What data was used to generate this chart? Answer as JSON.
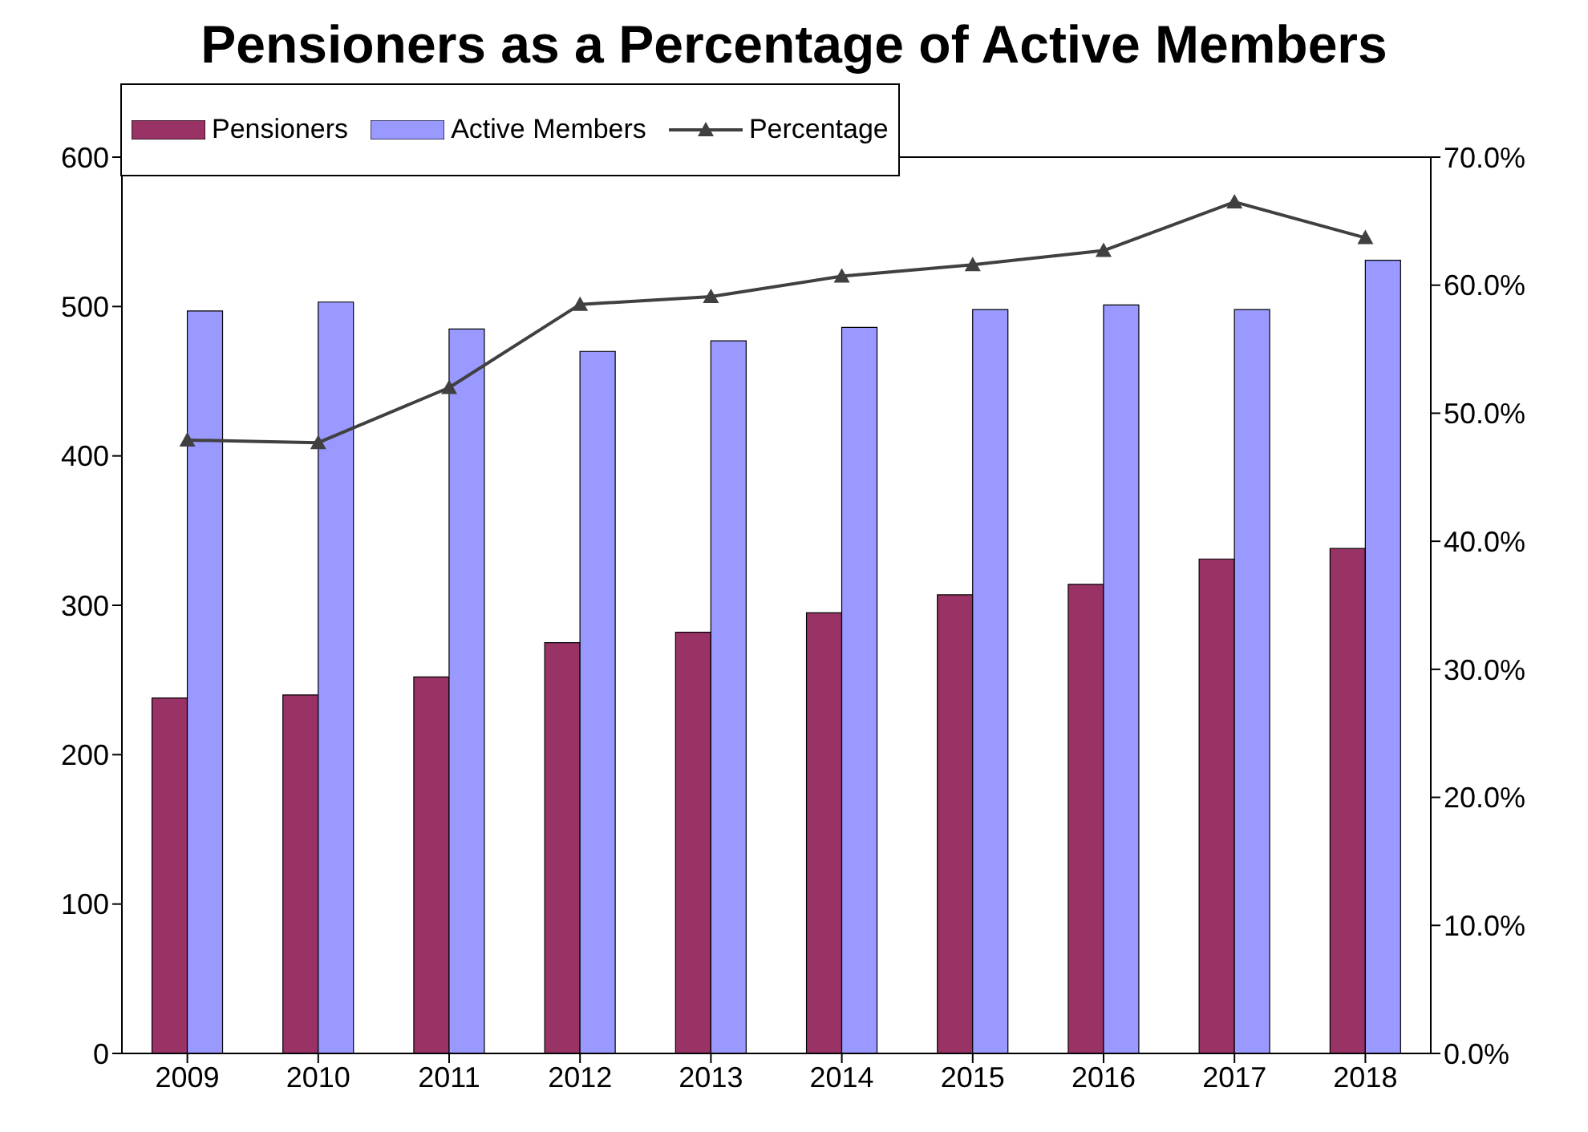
{
  "chart_data": {
    "type": "bar",
    "title": "Pensioners as a Percentage of Active Members",
    "categories": [
      "2009",
      "2010",
      "2011",
      "2012",
      "2013",
      "2014",
      "2015",
      "2016",
      "2017",
      "2018"
    ],
    "series": [
      {
        "name": "Pensioners",
        "color": "#993366",
        "values": [
          238,
          240,
          252,
          275,
          282,
          295,
          307,
          314,
          331,
          338
        ]
      },
      {
        "name": "Active Members",
        "color": "#9999ff",
        "values": [
          497,
          503,
          485,
          470,
          477,
          486,
          498,
          501,
          498,
          531
        ]
      },
      {
        "name": "Percentage",
        "type": "line",
        "axis": "y2",
        "color": "#404040",
        "marker": "triangle",
        "values": [
          47.9,
          47.7,
          52.0,
          58.5,
          59.1,
          60.7,
          61.6,
          62.7,
          66.5,
          63.7
        ]
      }
    ],
    "ylim": [
      0,
      600
    ],
    "yticks": [
      0,
      100,
      200,
      300,
      400,
      500,
      600
    ],
    "y2lim": [
      0,
      70
    ],
    "y2ticks": [
      {
        "value": 0,
        "label": "0.0%"
      },
      {
        "value": 10,
        "label": "10.0%"
      },
      {
        "value": 20,
        "label": "20.0%"
      },
      {
        "value": 30,
        "label": "30.0%"
      },
      {
        "value": 40,
        "label": "40.0%"
      },
      {
        "value": 50,
        "label": "50.0%"
      },
      {
        "value": 60,
        "label": "60.0%"
      },
      {
        "value": 70,
        "label": "70.0%"
      }
    ],
    "grid": false,
    "legend": "top left"
  }
}
